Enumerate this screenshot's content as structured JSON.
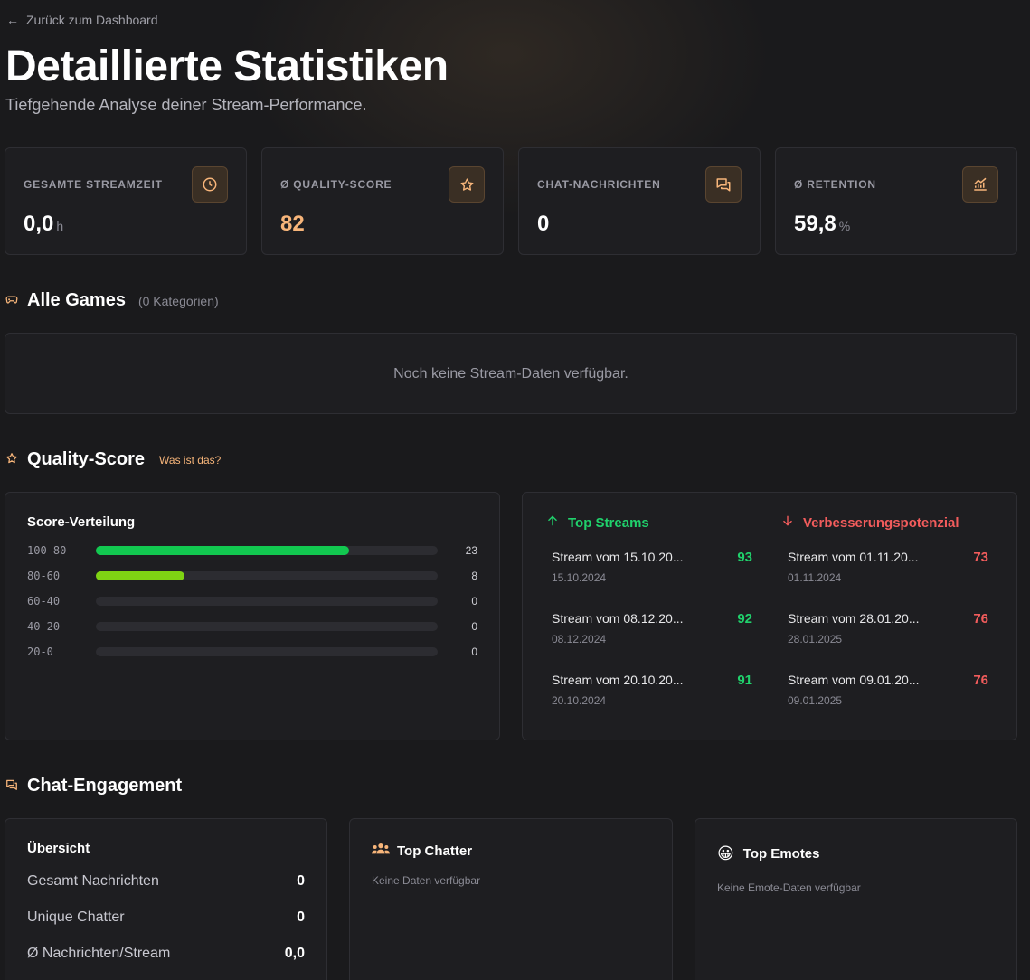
{
  "nav": {
    "back_label": "Zurück zum Dashboard"
  },
  "header": {
    "title": "Detaillierte Statistiken",
    "subtitle": "Tiefgehende Analyse deiner Stream-Performance."
  },
  "stats": [
    {
      "label": "GESAMTE STREAMZEIT",
      "value": "0,0",
      "unit": "h",
      "icon": "clock-icon"
    },
    {
      "label": "Ø QUALITY-SCORE",
      "value": "82",
      "unit": "",
      "icon": "star-icon"
    },
    {
      "label": "CHAT-NACHRICHTEN",
      "value": "0",
      "unit": "",
      "icon": "chat-icon"
    },
    {
      "label": "Ø RETENTION",
      "value": "59,8",
      "unit": "%",
      "icon": "chart-icon"
    }
  ],
  "games": {
    "title": "Alle Games",
    "count_label": "(0 Kategorien)",
    "empty": "Noch keine Stream-Daten verfügbar."
  },
  "quality": {
    "title": "Quality-Score",
    "help_link": "Was ist das?",
    "distribution": {
      "title": "Score-Verteilung",
      "rows": [
        {
          "label": "100-80",
          "count": "23",
          "fraction": 0.74,
          "color": "#12c850"
        },
        {
          "label": "80-60",
          "count": "8",
          "fraction": 0.26,
          "color": "#7fd313"
        },
        {
          "label": "60-40",
          "count": "0",
          "fraction": 0,
          "color": "#12c850"
        },
        {
          "label": "40-20",
          "count": "0",
          "fraction": 0,
          "color": "#12c850"
        },
        {
          "label": "20-0",
          "count": "0",
          "fraction": 0,
          "color": "#12c850"
        }
      ]
    },
    "top": {
      "title": "Top Streams",
      "color": "#20d16c",
      "items": [
        {
          "name": "Stream vom 15.10.20...",
          "date": "15.10.2024",
          "score": "93"
        },
        {
          "name": "Stream vom 08.12.20...",
          "date": "08.12.2024",
          "score": "92"
        },
        {
          "name": "Stream vom 20.10.20...",
          "date": "20.10.2024",
          "score": "91"
        }
      ]
    },
    "improve": {
      "title": "Verbesserungspotenzial",
      "color": "#f25c5c",
      "items": [
        {
          "name": "Stream vom 01.11.20...",
          "date": "01.11.2024",
          "score": "73"
        },
        {
          "name": "Stream vom 28.01.20...",
          "date": "28.01.2025",
          "score": "76"
        },
        {
          "name": "Stream vom 09.01.20...",
          "date": "09.01.2025",
          "score": "76"
        }
      ]
    }
  },
  "chat": {
    "title": "Chat-Engagement",
    "overview": {
      "title": "Übersicht",
      "rows": [
        {
          "key": "Gesamt Nachrichten",
          "value": "0"
        },
        {
          "key": "Unique Chatter",
          "value": "0"
        },
        {
          "key": "Ø Nachrichten/Stream",
          "value": "0,0"
        }
      ]
    },
    "top_chatter": {
      "title": "Top Chatter",
      "empty": "Keine Daten verfügbar"
    },
    "top_emotes": {
      "title": "Top Emotes",
      "emoji": "😀",
      "empty": "Keine Emote-Daten verfügbar"
    }
  },
  "colors": {
    "accent": "#f7b57a",
    "card_bg": "#1e1e21",
    "border": "#2e2e33"
  }
}
